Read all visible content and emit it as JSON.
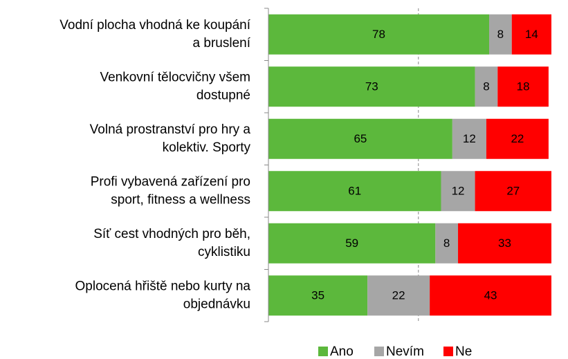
{
  "chart_data": {
    "type": "stacked_barh",
    "categories": [
      [
        "Vodní plocha vhodná ke koupání",
        "a bruslení"
      ],
      [
        "Venkovní tělocvičny všem",
        "dostupné"
      ],
      [
        "Volná prostranství pro hry a",
        "kolektiv. Sporty"
      ],
      [
        "Profi vybavená zařízení pro",
        "sport, fitness a wellness"
      ],
      [
        "Síť cest vhodných pro běh,",
        "cyklistiku"
      ],
      [
        "Oplocená hřiště nebo kurty na",
        "objednávku"
      ]
    ],
    "series": [
      {
        "name": "Ano",
        "color": "#5cb83c",
        "values": [
          78,
          73,
          65,
          61,
          59,
          35
        ]
      },
      {
        "name": "Nevím",
        "color": "#a6a6a6",
        "values": [
          8,
          8,
          12,
          12,
          8,
          22
        ]
      },
      {
        "name": "Ne",
        "color": "#ff0000",
        "values": [
          14,
          18,
          22,
          27,
          33,
          43
        ]
      }
    ],
    "xlim": [
      0,
      100
    ],
    "gridline": 53,
    "legend": "bottom"
  }
}
